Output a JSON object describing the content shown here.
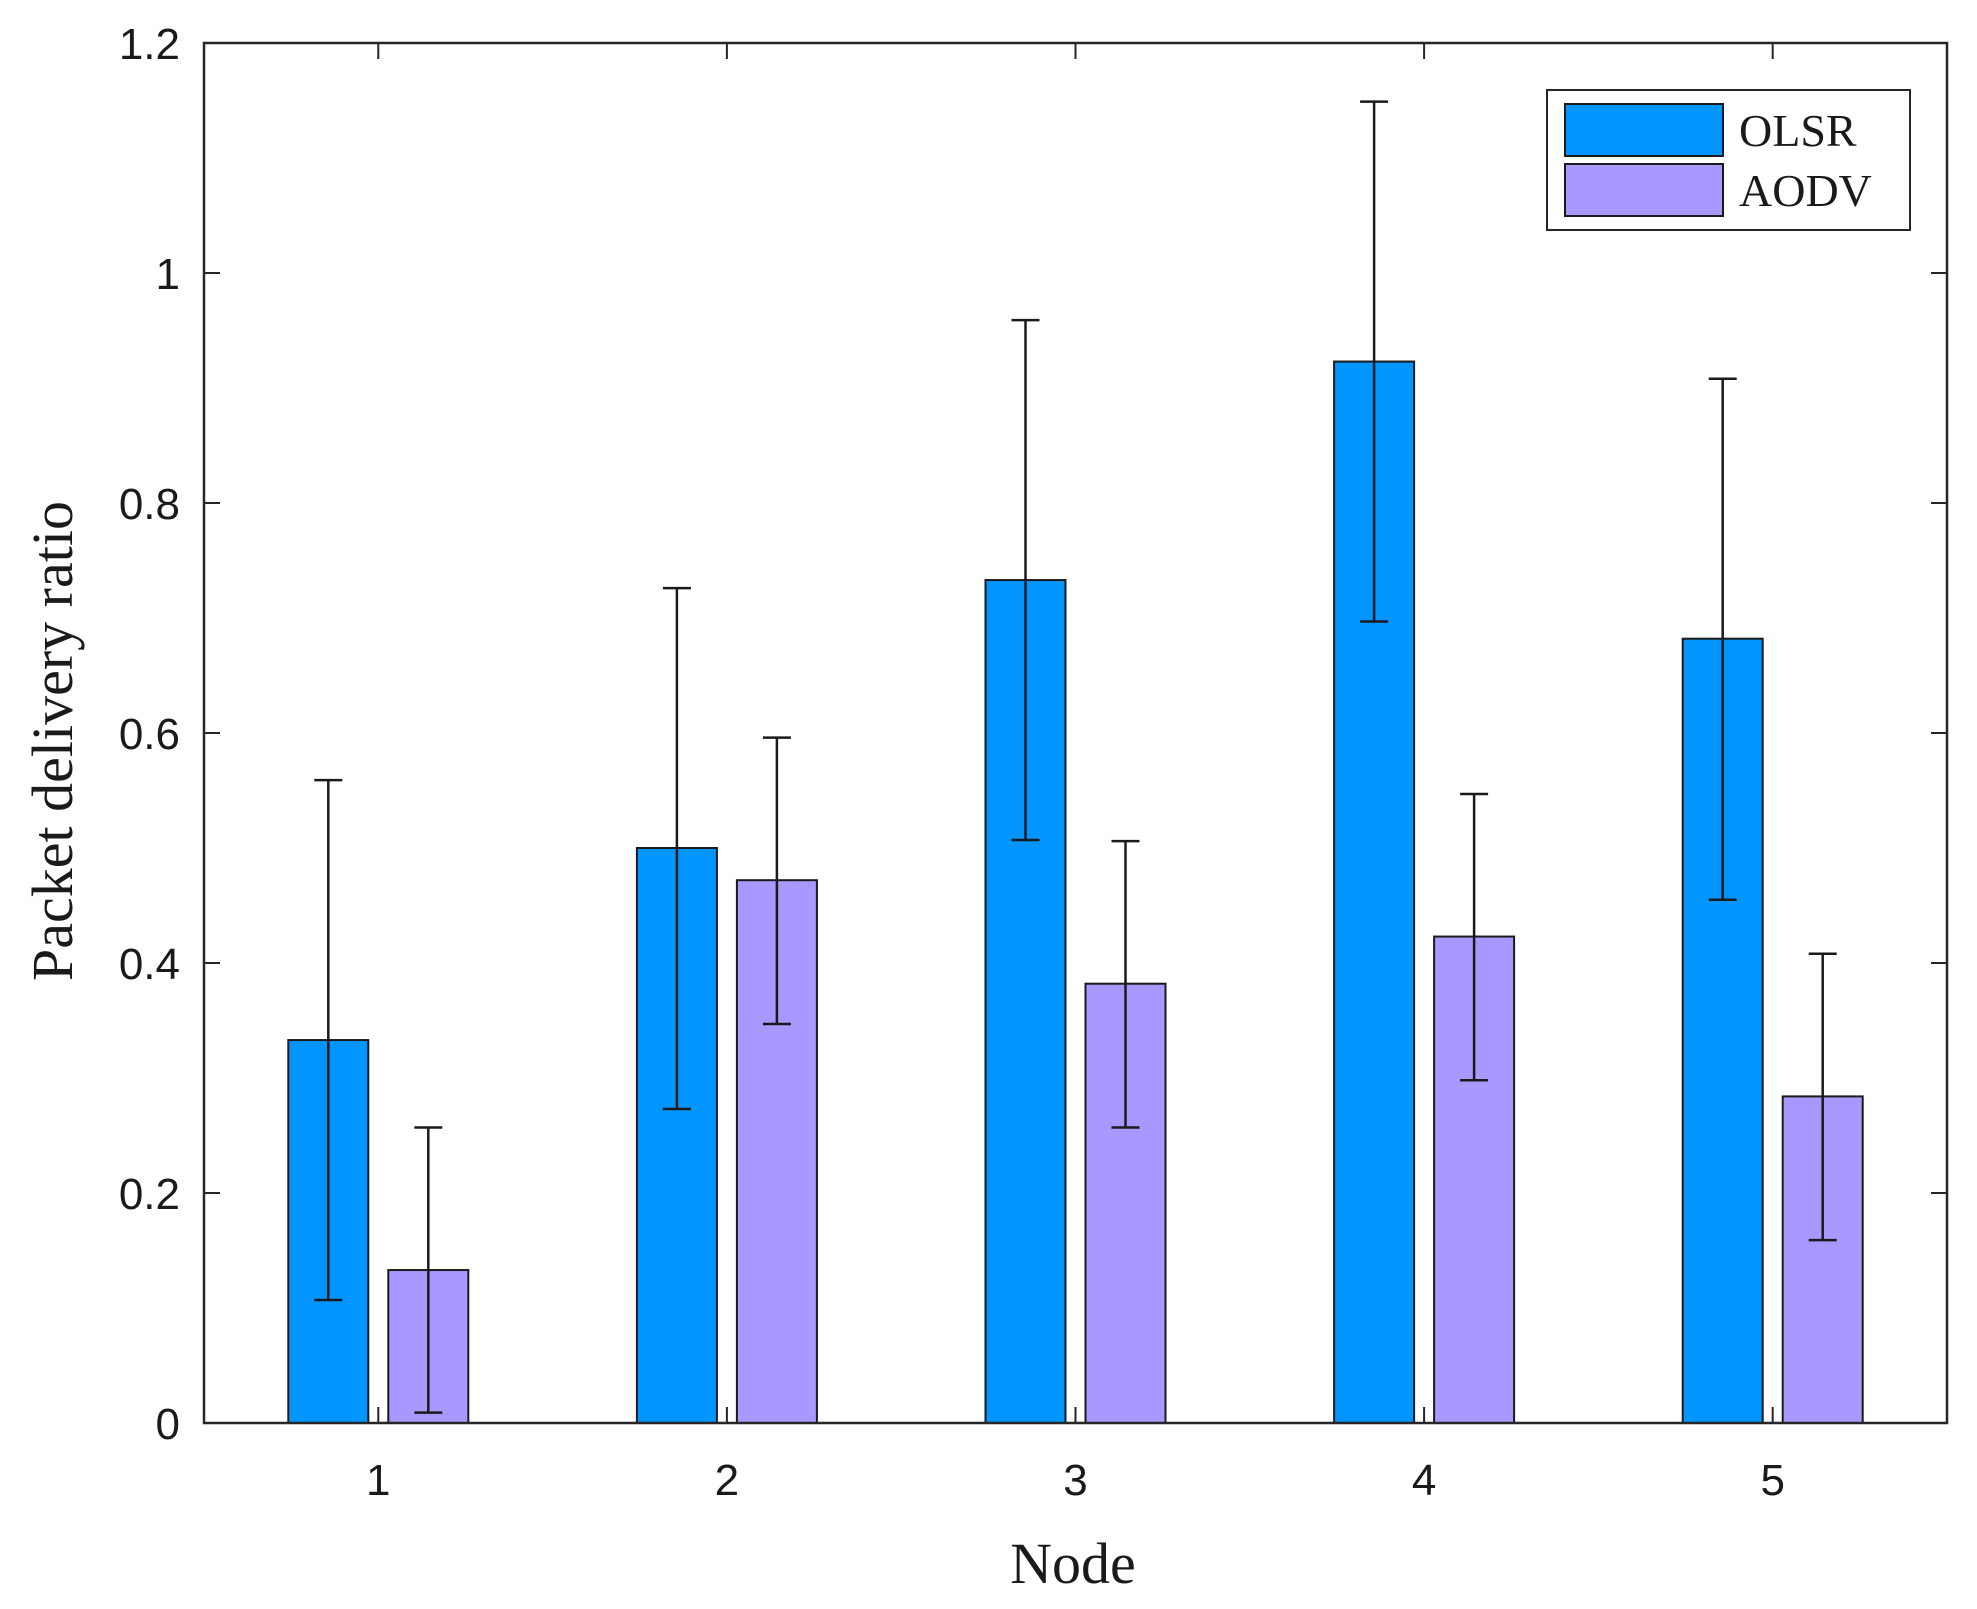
{
  "chart_data": {
    "type": "bar",
    "title": "",
    "xlabel": "Node",
    "ylabel": "Packet delivery ratio",
    "categories": [
      "1",
      "2",
      "3",
      "4",
      "5"
    ],
    "ylim": [
      0,
      1.2
    ],
    "yticks": [
      0,
      0.2,
      0.4,
      0.6,
      0.8,
      1,
      1.2
    ],
    "ytick_labels": [
      "0",
      "0.2",
      "0.4",
      "0.6",
      "0.8",
      "1",
      "1.2"
    ],
    "grid": false,
    "legend_position": "top-right",
    "series": [
      {
        "name": "OLSR",
        "color": "#0095ff",
        "values": [
          0.333,
          0.5,
          0.733,
          0.923,
          0.682
        ],
        "error_low": [
          0.107,
          0.273,
          0.507,
          0.697,
          0.455
        ],
        "error_high": [
          0.559,
          0.726,
          0.959,
          1.149,
          0.908
        ]
      },
      {
        "name": "AODV",
        "color": "#a898ff",
        "values": [
          0.133,
          0.472,
          0.382,
          0.423,
          0.284
        ],
        "error_low": [
          0.009,
          0.347,
          0.257,
          0.298,
          0.159
        ],
        "error_high": [
          0.257,
          0.596,
          0.506,
          0.547,
          0.408
        ]
      }
    ]
  }
}
